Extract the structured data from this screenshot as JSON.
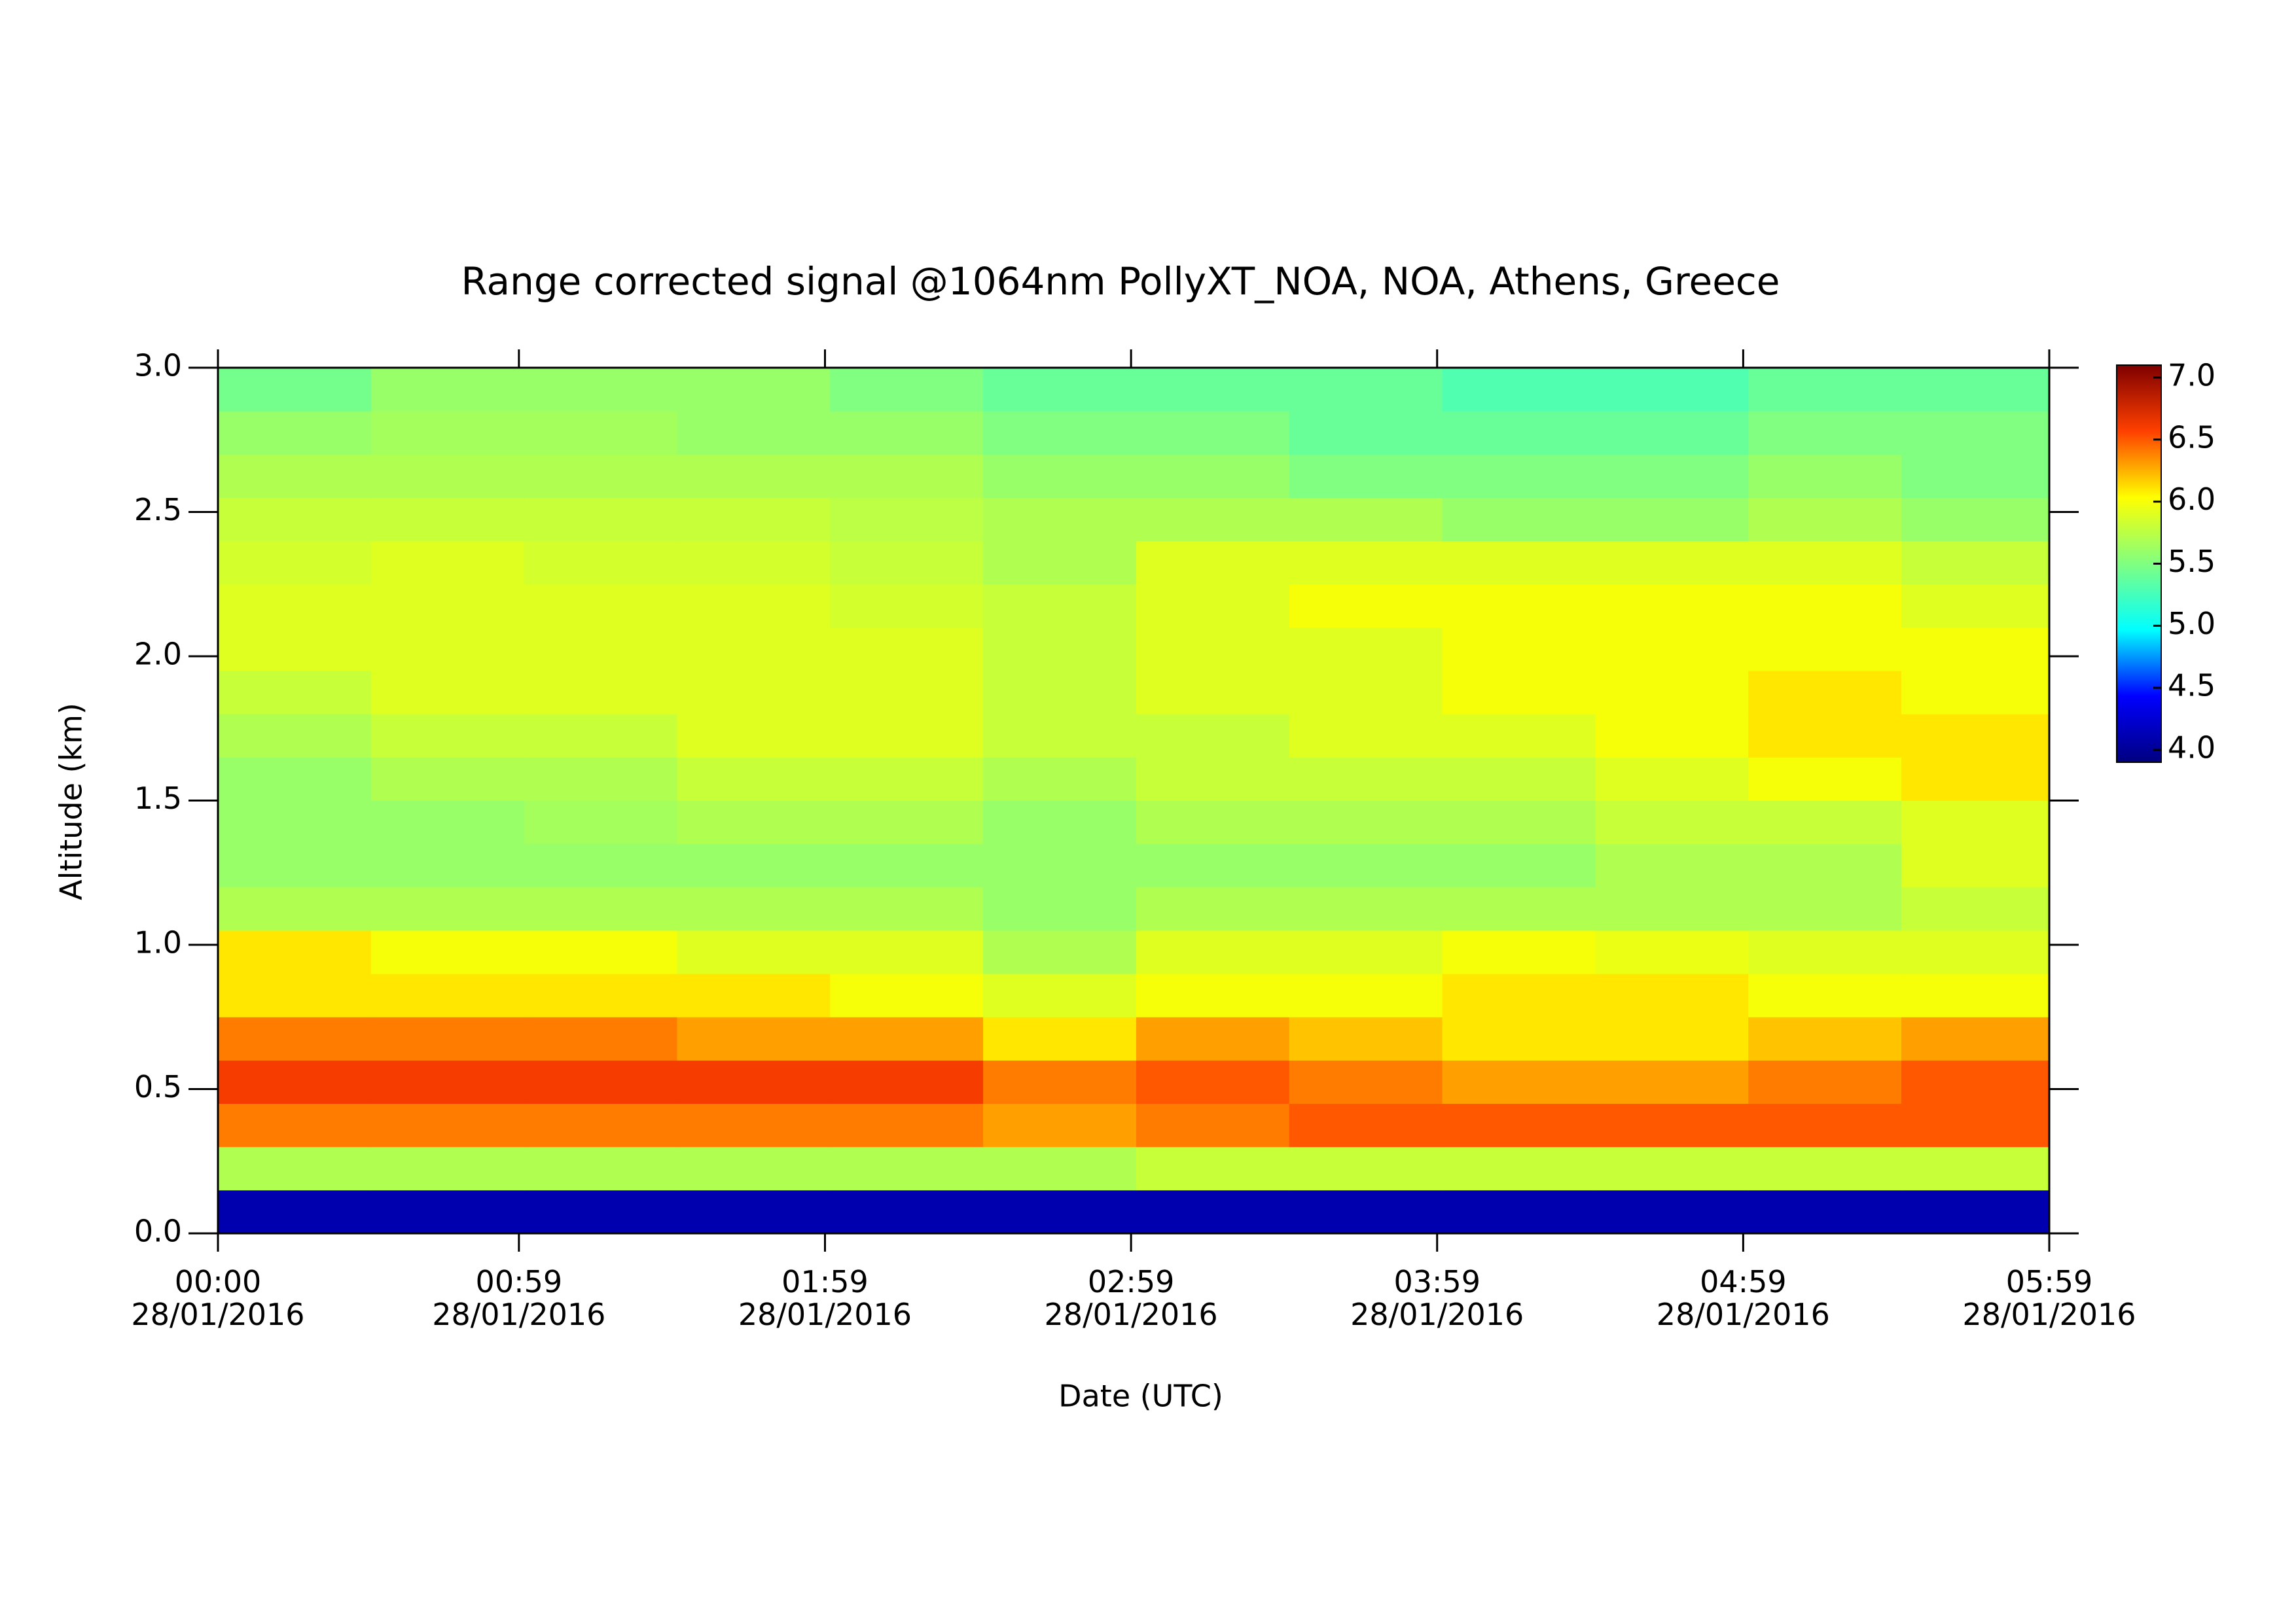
{
  "chart_data": {
    "type": "heatmap",
    "title": "Range corrected signal @1064nm  PollyXT_NOA, NOA, Athens, Greece",
    "x_label": "Date (UTC)",
    "y_label": "Altitude (km)",
    "xlim": [
      0,
      359
    ],
    "xticks": [
      {
        "value": 0,
        "label": [
          "00:00",
          "28/01/2016"
        ]
      },
      {
        "value": 59,
        "label": [
          "00:59",
          "28/01/2016"
        ]
      },
      {
        "value": 119,
        "label": [
          "01:59",
          "28/01/2016"
        ]
      },
      {
        "value": 179,
        "label": [
          "02:59",
          "28/01/2016"
        ]
      },
      {
        "value": 239,
        "label": [
          "03:59",
          "28/01/2016"
        ]
      },
      {
        "value": 299,
        "label": [
          "04:59",
          "28/01/2016"
        ]
      },
      {
        "value": 359,
        "label": [
          "05:59",
          "28/01/2016"
        ]
      }
    ],
    "ylim": [
      0,
      3
    ],
    "yticks": [
      {
        "value": 0,
        "label": "0.0"
      },
      0.5,
      {
        "value": 1,
        "label": "1.0"
      },
      1.5,
      {
        "value": 2,
        "label": "2.0"
      },
      2.5,
      {
        "value": 3,
        "label": "3.0"
      }
    ],
    "xbins": [
      0,
      30,
      60,
      90,
      120,
      150,
      180,
      210,
      240,
      270,
      300,
      330,
      359
    ],
    "ybins": [
      0,
      0.15,
      0.3,
      0.45,
      0.6,
      0.75,
      0.9,
      1.05,
      1.2,
      1.35,
      1.5,
      1.65,
      1.8,
      1.95,
      2.1,
      2.25,
      2.4,
      2.55,
      2.7,
      2.85,
      3.0
    ],
    "z": [
      [
        4.1,
        4.1,
        4.1,
        4.1,
        4.1,
        4.1,
        4.1,
        4.1,
        4.1,
        4.1,
        4.1,
        4.1
      ],
      [
        5.7,
        5.7,
        5.7,
        5.7,
        5.7,
        5.7,
        5.8,
        5.8,
        5.8,
        5.8,
        5.8,
        5.8
      ],
      [
        6.4,
        6.4,
        6.4,
        6.4,
        6.4,
        6.3,
        6.4,
        6.5,
        6.5,
        6.5,
        6.5,
        6.5
      ],
      [
        6.6,
        6.6,
        6.6,
        6.6,
        6.6,
        6.4,
        6.5,
        6.4,
        6.3,
        6.3,
        6.4,
        6.5
      ],
      [
        6.4,
        6.4,
        6.4,
        6.3,
        6.3,
        6.1,
        6.3,
        6.2,
        6.1,
        6.1,
        6.2,
        6.3
      ],
      [
        6.1,
        6.1,
        6.1,
        6.1,
        6.0,
        5.9,
        6.0,
        6.0,
        6.1,
        6.1,
        6.0,
        6.0
      ],
      [
        6.1,
        6.0,
        6.0,
        5.9,
        5.9,
        5.7,
        5.9,
        5.9,
        6.0,
        5.95,
        5.9,
        5.9
      ],
      [
        5.7,
        5.7,
        5.7,
        5.7,
        5.7,
        5.6,
        5.7,
        5.7,
        5.7,
        5.7,
        5.7,
        5.8
      ],
      [
        5.6,
        5.6,
        5.6,
        5.6,
        5.6,
        5.6,
        5.6,
        5.6,
        5.6,
        5.7,
        5.7,
        5.9
      ],
      [
        5.6,
        5.6,
        5.65,
        5.7,
        5.7,
        5.6,
        5.7,
        5.7,
        5.7,
        5.8,
        5.8,
        5.9
      ],
      [
        5.6,
        5.7,
        5.7,
        5.8,
        5.8,
        5.7,
        5.8,
        5.8,
        5.8,
        5.9,
        6.0,
        6.1
      ],
      [
        5.7,
        5.8,
        5.8,
        5.9,
        5.9,
        5.8,
        5.8,
        5.9,
        5.9,
        6.0,
        6.1,
        6.1
      ],
      [
        5.8,
        5.9,
        5.9,
        5.9,
        5.9,
        5.8,
        5.9,
        5.9,
        6.0,
        6.0,
        6.1,
        6.0
      ],
      [
        5.9,
        5.9,
        5.9,
        5.9,
        5.9,
        5.8,
        5.9,
        5.9,
        6.0,
        6.0,
        6.0,
        6.0
      ],
      [
        5.9,
        5.9,
        5.9,
        5.9,
        5.85,
        5.8,
        5.9,
        6.0,
        6.0,
        6.0,
        6.0,
        5.9
      ],
      [
        5.85,
        5.9,
        5.85,
        5.85,
        5.8,
        5.7,
        5.9,
        5.9,
        5.9,
        5.9,
        5.9,
        5.8
      ],
      [
        5.8,
        5.8,
        5.8,
        5.8,
        5.75,
        5.7,
        5.7,
        5.7,
        5.6,
        5.6,
        5.7,
        5.6
      ],
      [
        5.7,
        5.7,
        5.7,
        5.7,
        5.7,
        5.6,
        5.6,
        5.5,
        5.5,
        5.5,
        5.6,
        5.5
      ],
      [
        5.6,
        5.65,
        5.65,
        5.6,
        5.6,
        5.5,
        5.5,
        5.4,
        5.4,
        5.4,
        5.5,
        5.5
      ],
      [
        5.45,
        5.6,
        5.6,
        5.6,
        5.5,
        5.4,
        5.4,
        5.4,
        5.3,
        5.3,
        5.4,
        5.4
      ]
    ],
    "zlim": [
      3.9,
      7.1
    ],
    "zticks": [
      {
        "value": 4,
        "label": "4.0"
      },
      4.5,
      {
        "value": 5,
        "label": "5.0"
      },
      5.5,
      {
        "value": 6,
        "label": "6.0"
      },
      6.5,
      {
        "value": 7,
        "label": "7.0"
      }
    ],
    "colormap": [
      "#00007f",
      "#0000ff",
      "#00ffff",
      "#80ff80",
      "#ffff00",
      "#ff4000",
      "#7f0000"
    ]
  }
}
